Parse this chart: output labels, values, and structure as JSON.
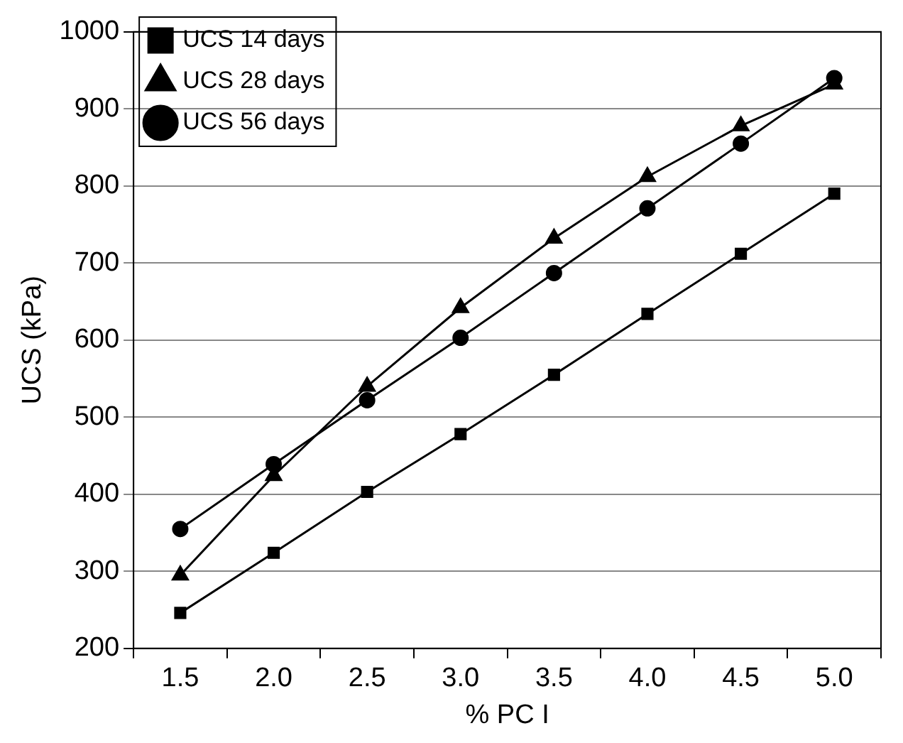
{
  "chart_data": {
    "type": "line",
    "xlabel": "% PC I",
    "ylabel": "UCS (kPa)",
    "categories": [
      "1.5",
      "2.0",
      "2.5",
      "3.0",
      "3.5",
      "4.0",
      "4.5",
      "5.0"
    ],
    "series": [
      {
        "name": "UCS 14 days",
        "color": "#000000",
        "marker": "square",
        "values": [
          246,
          324,
          403,
          478,
          555,
          634,
          712,
          790
        ]
      },
      {
        "name": "UCS 28 days",
        "color": "#000000",
        "marker": "triangle",
        "values": [
          295,
          424,
          540,
          642,
          732,
          812,
          878,
          932
        ]
      },
      {
        "name": "UCS 56 days",
        "color": "#000000",
        "marker": "circle",
        "values": [
          355,
          439,
          522,
          603,
          687,
          771,
          855,
          940
        ]
      }
    ],
    "ylim": [
      200,
      1000
    ],
    "yticks": [
      200,
      300,
      400,
      500,
      600,
      700,
      800,
      900,
      1000
    ],
    "grid": "y",
    "legend": "top left",
    "line_style": "solid"
  }
}
